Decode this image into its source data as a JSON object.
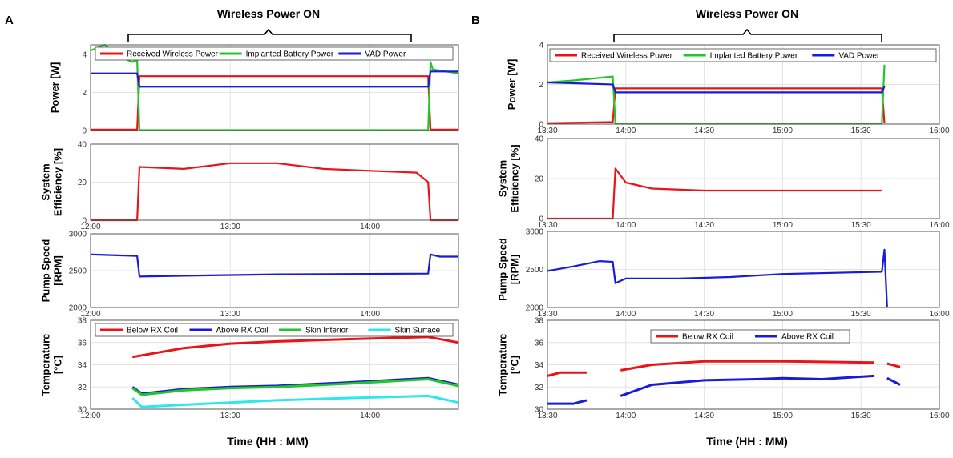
{
  "figure": {
    "colors": {
      "red": "#e8141a",
      "green": "#22c52a",
      "blue": "#1a1ad8",
      "cyan": "#2ee6ee",
      "axis": "#555555",
      "grid": "#e4e4e4"
    },
    "panel_a_label": "A",
    "panel_b_label": "B",
    "wireless_label": "Wireless Power ON",
    "xlabel": "Time (HH : MM)"
  },
  "chart_data": [
    {
      "id": "A-power",
      "panel": "A",
      "type": "line",
      "ylabel_lines": [
        "Power [W]"
      ],
      "xlim": [
        720,
        878
      ],
      "ylim": [
        0,
        4.5
      ],
      "xticks": [
        {
          "v": 720,
          "l": "12:00"
        },
        {
          "v": 780,
          "l": "13:00"
        },
        {
          "v": 840,
          "l": "14:00"
        }
      ],
      "yticks": [
        0,
        2,
        4
      ],
      "show_xticklabels": false,
      "legend": [
        "Received Wireless Power",
        "Implanted Battery Power",
        "VAD Power"
      ],
      "series": [
        {
          "name": "Received Wireless Power",
          "color": "red",
          "x": [
            720,
            740,
            741,
            865,
            866,
            878
          ],
          "y": [
            0.05,
            0.05,
            2.85,
            2.85,
            0.05,
            0.05
          ]
        },
        {
          "name": "Implanted Battery Power",
          "color": "green",
          "x": [
            720,
            726,
            732,
            738,
            740,
            741,
            865,
            866,
            867,
            878
          ],
          "y": [
            4.2,
            4.5,
            3.9,
            3.6,
            3.7,
            0.02,
            0.02,
            3.6,
            3.2,
            3.0
          ]
        },
        {
          "name": "VAD Power",
          "color": "blue",
          "x": [
            720,
            740,
            741,
            865,
            866,
            878
          ],
          "y": [
            3.0,
            3.0,
            2.3,
            2.3,
            3.1,
            3.1
          ]
        }
      ]
    },
    {
      "id": "A-eff",
      "panel": "A",
      "type": "line",
      "ylabel_lines": [
        "System",
        "Efficiency [%]"
      ],
      "xlim": [
        720,
        878
      ],
      "ylim": [
        0,
        40
      ],
      "xticks": [
        {
          "v": 720,
          "l": "12:00"
        },
        {
          "v": 780,
          "l": "13:00"
        },
        {
          "v": 840,
          "l": "14:00"
        }
      ],
      "yticks": [
        0,
        20,
        40
      ],
      "show_xticklabels": true,
      "series": [
        {
          "name": "System Efficiency",
          "color": "red",
          "x": [
            720,
            740,
            741,
            760,
            780,
            800,
            820,
            840,
            860,
            865,
            866,
            878
          ],
          "y": [
            0,
            0,
            28,
            27,
            30,
            30,
            27,
            26,
            25,
            20,
            0,
            0
          ]
        }
      ]
    },
    {
      "id": "A-pump",
      "panel": "A",
      "type": "line",
      "ylabel_lines": [
        "Pump Speed",
        "[RPM]"
      ],
      "xlim": [
        720,
        878
      ],
      "ylim": [
        2000,
        3000
      ],
      "xticks": [
        {
          "v": 720,
          "l": "12:00"
        },
        {
          "v": 780,
          "l": "13:00"
        },
        {
          "v": 840,
          "l": "14:00"
        }
      ],
      "yticks": [
        2000,
        2500,
        3000
      ],
      "show_xticklabels": true,
      "series": [
        {
          "name": "Pump Speed",
          "color": "blue",
          "x": [
            720,
            740,
            741,
            760,
            800,
            865,
            866,
            870,
            878
          ],
          "y": [
            2720,
            2700,
            2420,
            2430,
            2450,
            2460,
            2720,
            2690,
            2690
          ]
        }
      ]
    },
    {
      "id": "A-temp",
      "panel": "A",
      "type": "line",
      "ylabel_lines": [
        "Temperature",
        "[°C]"
      ],
      "xlim": [
        720,
        878
      ],
      "ylim": [
        30,
        38
      ],
      "xticks": [
        {
          "v": 720,
          "l": "12:00"
        },
        {
          "v": 780,
          "l": "13:00"
        },
        {
          "v": 840,
          "l": "14:00"
        }
      ],
      "yticks": [
        30,
        32,
        34,
        36,
        38
      ],
      "show_xticklabels": true,
      "legend": [
        "Below RX Coil",
        "Above RX Coil",
        "Skin Interior",
        "Skin Surface"
      ],
      "series": [
        {
          "name": "Below RX Coil",
          "color": "red",
          "x": [
            738,
            760,
            780,
            800,
            830,
            865,
            878
          ],
          "y": [
            34.7,
            35.5,
            35.9,
            36.1,
            36.3,
            36.5,
            36.0
          ]
        },
        {
          "name": "Above RX Coil",
          "color": "blue",
          "x": [
            738,
            742,
            760,
            780,
            800,
            830,
            865,
            878
          ],
          "y": [
            32.0,
            31.4,
            31.8,
            32.0,
            32.1,
            32.4,
            32.8,
            32.2
          ]
        },
        {
          "name": "Skin Interior",
          "color": "green",
          "x": [
            738,
            742,
            760,
            780,
            800,
            830,
            865,
            878
          ],
          "y": [
            31.9,
            31.3,
            31.7,
            31.9,
            32.0,
            32.3,
            32.7,
            32.1
          ]
        },
        {
          "name": "Skin Surface",
          "color": "cyan",
          "x": [
            738,
            742,
            760,
            780,
            800,
            830,
            865,
            878
          ],
          "y": [
            31.0,
            30.2,
            30.4,
            30.6,
            30.8,
            31.0,
            31.2,
            30.6
          ]
        }
      ]
    },
    {
      "id": "B-power",
      "panel": "B",
      "type": "line",
      "ylabel_lines": [
        "Power [W]"
      ],
      "xlim": [
        810,
        960
      ],
      "ylim": [
        0,
        4
      ],
      "xticks": [
        {
          "v": 810,
          "l": "13:30"
        },
        {
          "v": 840,
          "l": "14:00"
        },
        {
          "v": 870,
          "l": "14:30"
        },
        {
          "v": 900,
          "l": "15:00"
        },
        {
          "v": 930,
          "l": "15:30"
        },
        {
          "v": 960,
          "l": "16:00"
        }
      ],
      "yticks": [
        0,
        2,
        4
      ],
      "show_xticklabels": true,
      "legend": [
        "Received Wireless Power",
        "Implanted Battery Power",
        "VAD Power"
      ],
      "series": [
        {
          "name": "Received Wireless Power",
          "color": "red",
          "x": [
            810,
            835,
            836,
            938,
            939
          ],
          "y": [
            0.05,
            0.1,
            1.8,
            1.8,
            0.05
          ]
        },
        {
          "name": "Implanted Battery Power",
          "color": "green",
          "x": [
            810,
            820,
            835,
            836,
            938,
            939
          ],
          "y": [
            2.1,
            2.2,
            2.4,
            0.02,
            0.02,
            3.0
          ]
        },
        {
          "name": "VAD Power",
          "color": "blue",
          "x": [
            810,
            835,
            836,
            938,
            939
          ],
          "y": [
            2.1,
            2.0,
            1.6,
            1.6,
            1.9
          ]
        }
      ]
    },
    {
      "id": "B-eff",
      "panel": "B",
      "type": "line",
      "ylabel_lines": [
        "System",
        "Efficiency [%]"
      ],
      "xlim": [
        810,
        960
      ],
      "ylim": [
        0,
        40
      ],
      "xticks": [
        {
          "v": 810,
          "l": "13:30"
        },
        {
          "v": 840,
          "l": "14:00"
        },
        {
          "v": 870,
          "l": "14:30"
        },
        {
          "v": 900,
          "l": "15:00"
        },
        {
          "v": 930,
          "l": "15:30"
        },
        {
          "v": 960,
          "l": "16:00"
        }
      ],
      "yticks": [
        0,
        20,
        40
      ],
      "show_xticklabels": true,
      "series": [
        {
          "name": "System Efficiency",
          "color": "red",
          "x": [
            810,
            835,
            836,
            840,
            850,
            870,
            900,
            938
          ],
          "y": [
            0,
            0,
            25,
            18,
            15,
            14,
            14,
            14
          ]
        }
      ]
    },
    {
      "id": "B-pump",
      "panel": "B",
      "type": "line",
      "ylabel_lines": [
        "Pump Speed",
        "[RPM]"
      ],
      "xlim": [
        810,
        960
      ],
      "ylim": [
        2000,
        3000
      ],
      "xticks": [
        {
          "v": 810,
          "l": "13:30"
        },
        {
          "v": 840,
          "l": "14:00"
        },
        {
          "v": 870,
          "l": "14:30"
        },
        {
          "v": 900,
          "l": "15:00"
        },
        {
          "v": 930,
          "l": "15:30"
        },
        {
          "v": 960,
          "l": "16:00"
        }
      ],
      "yticks": [
        2000,
        2500,
        3000
      ],
      "show_xticklabels": true,
      "series": [
        {
          "name": "Pump Speed",
          "color": "blue",
          "x": [
            810,
            820,
            830,
            835,
            836,
            840,
            860,
            880,
            900,
            938,
            939,
            940
          ],
          "y": [
            2480,
            2540,
            2610,
            2600,
            2320,
            2380,
            2380,
            2400,
            2440,
            2470,
            2760,
            2000
          ]
        }
      ]
    },
    {
      "id": "B-temp",
      "panel": "B",
      "type": "line",
      "ylabel_lines": [
        "Temperature",
        "[°C]"
      ],
      "xlim": [
        810,
        960
      ],
      "ylim": [
        30,
        38
      ],
      "xticks": [
        {
          "v": 810,
          "l": "13:30"
        },
        {
          "v": 840,
          "l": "14:00"
        },
        {
          "v": 870,
          "l": "14:30"
        },
        {
          "v": 900,
          "l": "15:00"
        },
        {
          "v": 930,
          "l": "15:30"
        },
        {
          "v": 960,
          "l": "16:00"
        }
      ],
      "yticks": [
        30,
        32,
        34,
        36,
        38
      ],
      "show_xticklabels": true,
      "legend": [
        "Below RX Coil",
        "Above RX Coil"
      ],
      "series": [
        {
          "name": "Below RX Coil",
          "color": "red",
          "segments": [
            {
              "x": [
                810,
                815,
                825
              ],
              "y": [
                33.0,
                33.3,
                33.3
              ]
            },
            {
              "x": [
                838,
                850,
                870,
                900,
                935
              ],
              "y": [
                33.5,
                34.0,
                34.3,
                34.3,
                34.2
              ]
            },
            {
              "x": [
                940,
                945
              ],
              "y": [
                34.1,
                33.8
              ]
            }
          ]
        },
        {
          "name": "Above RX Coil",
          "color": "blue",
          "segments": [
            {
              "x": [
                810,
                820,
                825
              ],
              "y": [
                30.5,
                30.5,
                30.8
              ]
            },
            {
              "x": [
                838,
                850,
                870,
                890,
                900,
                915,
                935
              ],
              "y": [
                31.2,
                32.2,
                32.6,
                32.7,
                32.8,
                32.7,
                33.0
              ]
            },
            {
              "x": [
                940,
                945
              ],
              "y": [
                32.8,
                32.2
              ]
            }
          ]
        }
      ]
    }
  ]
}
